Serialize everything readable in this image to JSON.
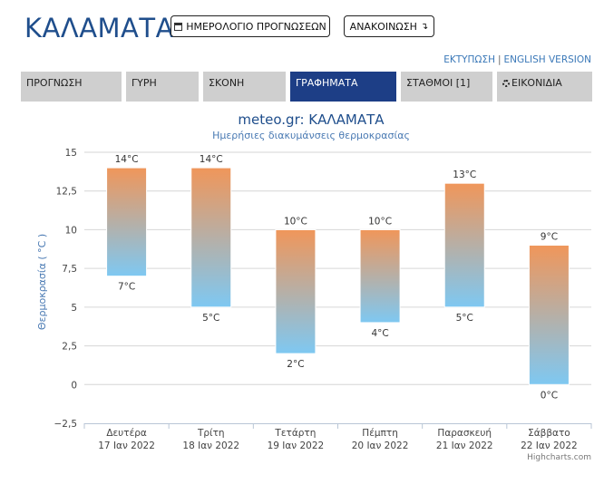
{
  "header": {
    "city": "ΚΑΛΑΜΑΤΑ",
    "calendar_label": "ΗΜΕΡΟΛΟΓΙΟ ΠΡΟΓΝΩΣΕΩΝ",
    "announce_label": "ΑΝΑΚΟΙΝΩΣΗ",
    "announce_arrow": "↴",
    "print_link": "ΕΚΤΥΠΩΣΗ",
    "link_separator": "|",
    "english_link": "ENGLISH VERSION"
  },
  "tabs": [
    {
      "label": "ΠΡΟΓΝΩΣΗ",
      "active": false
    },
    {
      "label": "ΓΥΡΗ",
      "active": false
    },
    {
      "label": "ΣΚΟΝΗ",
      "active": false
    },
    {
      "label": "ΓΡΑΦΗΜΑΤΑ",
      "active": true
    },
    {
      "label": "ΣΤΑΘΜΟΙ [1]",
      "active": false
    },
    {
      "label": "ΕΙΚΟΝΙΔΙΑ",
      "active": false,
      "icon": "gear-icon"
    }
  ],
  "chart_data": {
    "type": "columnrange",
    "title": "meteo.gr: ΚΑΛΑΜΑΤΑ",
    "subtitle": "Ημερήσιες διακυμάνσεις θερμοκρασίας",
    "ylabel": "Θερμοκρασία ( °C )",
    "ylim": [
      -2.5,
      15
    ],
    "yticks": [
      15,
      12.5,
      10,
      7.5,
      5,
      2.5,
      0,
      -2.5
    ],
    "ytick_labels": [
      "15",
      "12,5",
      "10",
      "7,5",
      "5",
      "2,5",
      "0",
      "−2,5"
    ],
    "grid": true,
    "categories": [
      {
        "day": "Δευτέρα",
        "date": "17 Ιαν 2022"
      },
      {
        "day": "Τρίτη",
        "date": "18 Ιαν 2022"
      },
      {
        "day": "Τετάρτη",
        "date": "19 Ιαν 2022"
      },
      {
        "day": "Πέμπτη",
        "date": "20 Ιαν 2022"
      },
      {
        "day": "Παρασκευή",
        "date": "21 Ιαν 2022"
      },
      {
        "day": "Σάββατο",
        "date": "22 Ιαν 2022"
      }
    ],
    "low": [
      7,
      5,
      2,
      4,
      5,
      0
    ],
    "high": [
      14,
      14,
      10,
      10,
      13,
      9
    ],
    "low_labels": [
      "7°C",
      "5°C",
      "2°C",
      "4°C",
      "5°C",
      "0°C"
    ],
    "high_labels": [
      "14°C",
      "14°C",
      "10°C",
      "10°C",
      "13°C",
      "9°C"
    ],
    "colors": {
      "warm": "#f0965a",
      "cold": "#7ec8f2",
      "title": "#1f4e8c",
      "subtitle": "#4a7ab3"
    },
    "credits": "Highcharts.com"
  }
}
